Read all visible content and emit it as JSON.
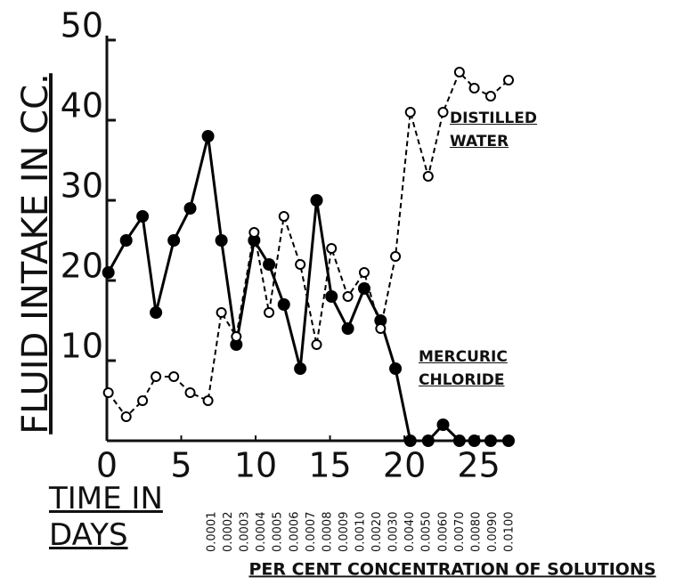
{
  "chart_data": {
    "type": "line",
    "ylabel": "FLUID INTAKE IN CC.",
    "xlabel": "TIME IN DAYS",
    "secondary_xlabel": "PER CENT CONCENTRATION OF SOLUTIONS",
    "concentration_labels": [
      "0.0001",
      "0.0002",
      "0.0003",
      "0.0004",
      "0.0005",
      "0.0006",
      "0.0007",
      "0.0008",
      "0.0009",
      "0.0010",
      "0.0020",
      "0.0030",
      "0.0040",
      "0.0050",
      "0.0060",
      "0.0070",
      "0.0080",
      "0.0090",
      "0.0100"
    ],
    "x": [
      0.1,
      1.3,
      2.4,
      3.3,
      4.5,
      5.6,
      6.8,
      7.7,
      8.7,
      9.9,
      10.9,
      11.9,
      13,
      14.1,
      15.1,
      16.2,
      17.3,
      18.4,
      19.4,
      20.4,
      21.6,
      22.6,
      23.7,
      24.7,
      25.8,
      27
    ],
    "series": [
      {
        "name": "MERCURIC CHLORIDE",
        "color": "#000000",
        "dashed": false,
        "marker": "filled",
        "values": [
          21,
          25,
          28,
          16,
          25,
          29,
          38,
          25,
          12,
          25,
          22,
          17,
          9,
          30,
          18,
          14,
          19,
          15,
          9,
          0,
          0,
          2,
          0,
          0,
          0,
          0
        ]
      },
      {
        "name": "DISTILLED WATER",
        "color": "#000000",
        "dashed": true,
        "marker": "open",
        "values": [
          6,
          3,
          5,
          8,
          8,
          6,
          5,
          16,
          13,
          26,
          16,
          28,
          22,
          12,
          24,
          18,
          21,
          14,
          23,
          41,
          33,
          41,
          46,
          44,
          43,
          45
        ]
      }
    ],
    "xlim": [
      0,
      27
    ],
    "ylim": [
      0,
      50
    ],
    "xticks": [
      0,
      5,
      10,
      15,
      20,
      25
    ],
    "yticks": [
      10,
      20,
      30,
      40,
      50
    ]
  }
}
